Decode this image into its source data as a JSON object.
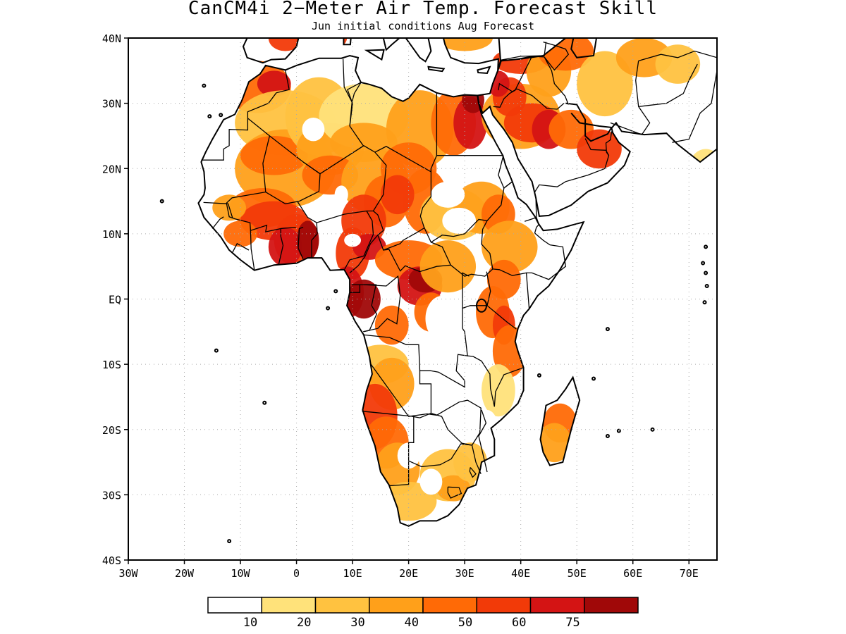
{
  "title": "CanCM4i 2−Meter Air Temp. Forecast Skill",
  "subtitle": "Jun initial conditions  Aug Forecast",
  "map": {
    "lon_range": [
      -30,
      75
    ],
    "lat_range": [
      -40,
      40
    ],
    "x_ticks": [
      "30W",
      "20W",
      "10W",
      "0",
      "10E",
      "20E",
      "30E",
      "40E",
      "50E",
      "60E",
      "70E"
    ],
    "y_ticks": [
      "40N",
      "30N",
      "20N",
      "10N",
      "EQ",
      "10S",
      "20S",
      "30S",
      "40S"
    ],
    "grid": "dotted"
  },
  "legend": {
    "colors": [
      "#ffffff",
      "#ffe27a",
      "#ffc240",
      "#ffa01a",
      "#ff6a06",
      "#f23a08",
      "#d41414",
      "#a00808"
    ],
    "labels": [
      "10",
      "20",
      "30",
      "40",
      "50",
      "60",
      "75"
    ]
  }
}
